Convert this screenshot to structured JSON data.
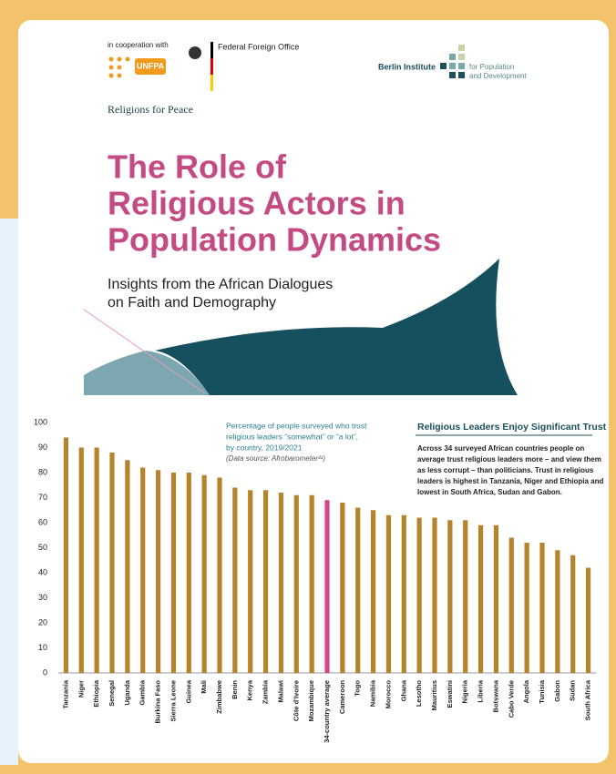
{
  "header": {
    "cooperation": "in cooperation with",
    "unfpa": "UNFPA",
    "foreign_office": "Federal Foreign Office",
    "berlin_institute": "Berlin Institute",
    "berlin_sub": [
      "for Population",
      "and Development"
    ],
    "religions_for_peace": "Religions for Peace"
  },
  "title": [
    "The Role of",
    "Religious Actors in",
    "Population Dynamics"
  ],
  "subtitle": [
    "Insights from the African Dialogues",
    "on Faith and Demography"
  ],
  "chart_data": {
    "type": "bar",
    "caption": [
      "Percentage of people surveyed who trust",
      "religious leaders “somewhat” or “a lot”,",
      "by country, 2019/2021"
    ],
    "source": "(Data source: Afrobarometer²¹)",
    "box_title": "Religious Leaders Enjoy Significant Trust",
    "box_text": [
      "Across 34 surveyed African countries people on",
      "average trust religious leaders more – and view them",
      "as less corrupt – than politicians. Trust in religious",
      "leaders is highest in Tanzania, Niger and Ethiopia and",
      "lowest in South Africa, Sudan and Gabon."
    ],
    "categories": [
      "Tanzania",
      "Niger",
      "Ethiopia",
      "Senegal",
      "Uganda",
      "Gambia",
      "Burkina Faso",
      "Sierra Leone",
      "Guinea",
      "Mali",
      "Zimbabwe",
      "Benin",
      "Kenya",
      "Zambia",
      "Malawi",
      "Côte d'Ivoire",
      "Mozambique",
      "34-country average",
      "Cameroon",
      "Togo",
      "Namibia",
      "Morocco",
      "Ghana",
      "Lesotho",
      "Mauritius",
      "Eswatini",
      "Nigeria",
      "Liberia",
      "Botswana",
      "Cabo Verde",
      "Angola",
      "Tunisia",
      "Gabon",
      "Sudan",
      "South Africa"
    ],
    "values": [
      94,
      90,
      90,
      88,
      85,
      82,
      81,
      80,
      80,
      79,
      78,
      74,
      73,
      73,
      72,
      71,
      71,
      69,
      68,
      66,
      65,
      63,
      63,
      62,
      62,
      61,
      61,
      59,
      59,
      54,
      52,
      52,
      49,
      47,
      42
    ],
    "colors": [
      "#b5832b",
      "#b5832b",
      "#b5832b",
      "#b5832b",
      "#b5832b",
      "#b5832b",
      "#b5832b",
      "#b5832b",
      "#b5832b",
      "#b5832b",
      "#b5832b",
      "#b5832b",
      "#b5832b",
      "#b5832b",
      "#b5832b",
      "#b5832b",
      "#b5832b",
      "#d4478a",
      "#b5832b",
      "#b5832b",
      "#b5832b",
      "#b5832b",
      "#b5832b",
      "#b5832b",
      "#b5832b",
      "#b5832b",
      "#b5832b",
      "#b5832b",
      "#b5832b",
      "#b5832b",
      "#b5832b",
      "#b5832b",
      "#b5832b",
      "#b5832b",
      "#b5832b"
    ],
    "ylim": [
      0,
      100
    ],
    "yticks": [
      0,
      10,
      20,
      30,
      40,
      50,
      60,
      70,
      80,
      90,
      100
    ],
    "grid": false
  }
}
